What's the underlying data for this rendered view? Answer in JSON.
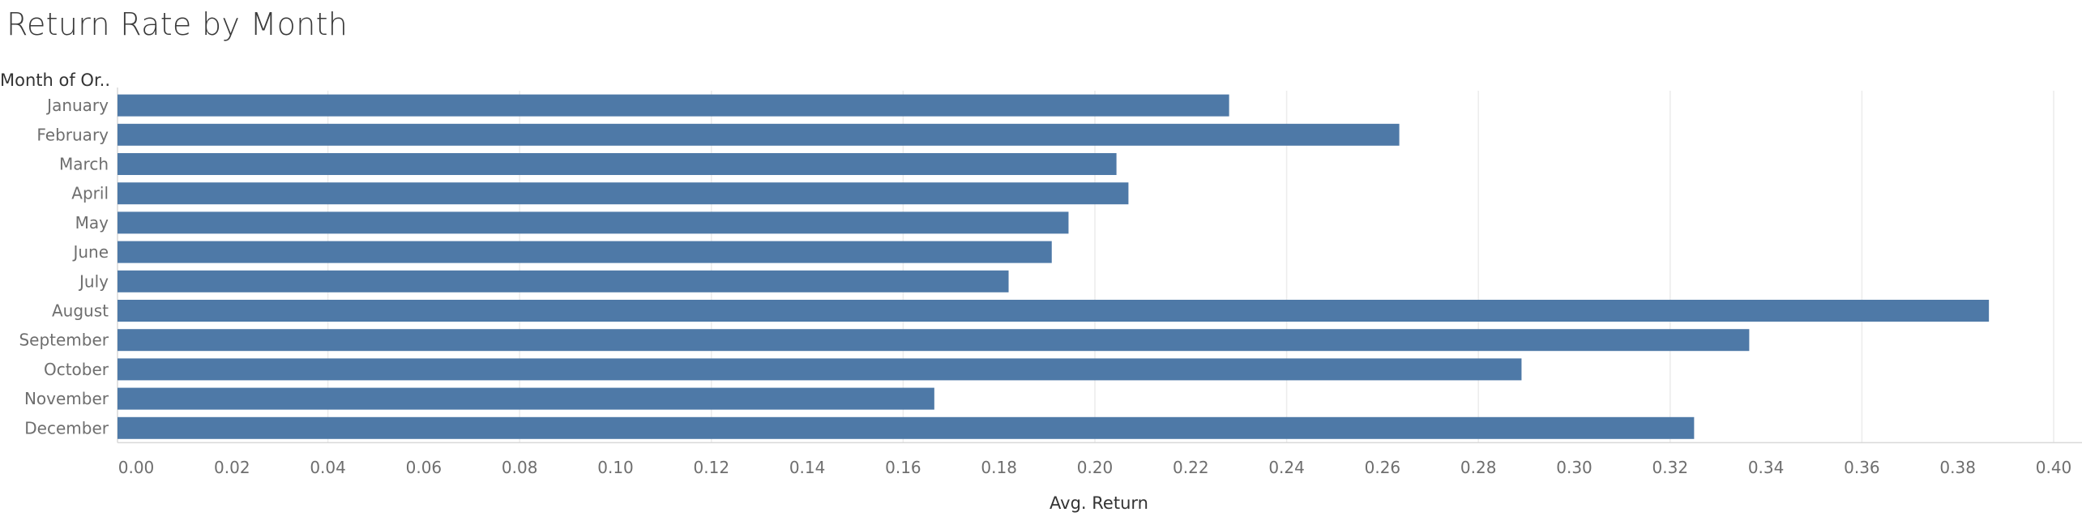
{
  "title": "Return Rate by Month",
  "colors": {
    "bar": "#4e79a7",
    "grid": "#ececec",
    "axis_line": "#d9d9d9"
  },
  "chart_data": {
    "type": "bar",
    "orientation": "horizontal",
    "title": "Return Rate by Month",
    "row_header": "Month of Or..",
    "xlabel": "Avg. Return",
    "ylabel": "",
    "xlim": [
      0,
      0.4
    ],
    "x_ticks": [
      "0.00",
      "0.02",
      "0.04",
      "0.06",
      "0.08",
      "0.10",
      "0.12",
      "0.14",
      "0.16",
      "0.18",
      "0.20",
      "0.22",
      "0.24",
      "0.26",
      "0.28",
      "0.30",
      "0.32",
      "0.34",
      "0.36",
      "0.38",
      "0.40"
    ],
    "grid": true,
    "categories": [
      "January",
      "February",
      "March",
      "April",
      "May",
      "June",
      "July",
      "August",
      "September",
      "October",
      "November",
      "December"
    ],
    "values": [
      0.228,
      0.2635,
      0.2045,
      0.207,
      0.1945,
      0.191,
      0.182,
      0.3865,
      0.3365,
      0.289,
      0.1665,
      0.325
    ]
  }
}
